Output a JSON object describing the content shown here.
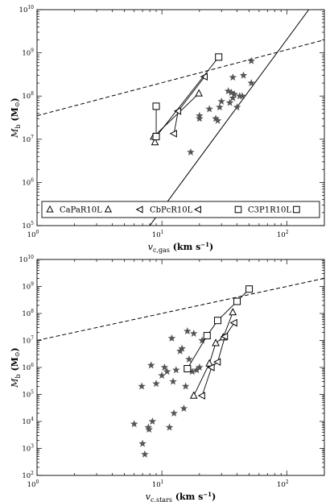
{
  "chart_data": [
    {
      "type": "scatter",
      "panel": "top",
      "x_scale": "log",
      "y_scale": "log",
      "xlim": [
        1,
        200
      ],
      "ylim": [
        100000,
        10000000000
      ],
      "xlabel_main": "v",
      "xlabel_sub": "c,gas",
      "xlabel_units": " (km s",
      "xlabel_exp": "−1",
      "xlabel_close": ")",
      "ylabel_main": "M",
      "ylabel_sub": "b",
      "ylabel_units": " (M",
      "ylabel_sym": "⊙",
      "ylabel_close": ")",
      "xticks": [
        {
          "value": 1,
          "label": "10",
          "exp": "0"
        },
        {
          "value": 10,
          "label": "10",
          "exp": "1"
        },
        {
          "value": 100,
          "label": "10",
          "exp": "2"
        }
      ],
      "yticks": [
        {
          "value": 100000,
          "label": "10",
          "exp": "5"
        },
        {
          "value": 1000000,
          "label": "10",
          "exp": "6"
        },
        {
          "value": 10000000,
          "label": "10",
          "exp": "7"
        },
        {
          "value": 100000000,
          "label": "10",
          "exp": "8"
        },
        {
          "value": 1000000000,
          "label": "10",
          "exp": "9"
        },
        {
          "value": 10000000000,
          "label": "10",
          "exp": "10"
        }
      ],
      "legend_position": "bottom",
      "legend": [
        {
          "label": "CaPaR10L",
          "marker": "triangle-up"
        },
        {
          "label": "CbPcR10L",
          "marker": "triangle-left"
        },
        {
          "label": "C3P1R10L",
          "marker": "square"
        }
      ],
      "stars": [
        {
          "x": 17,
          "y": 5000000
        },
        {
          "x": 20,
          "y": 30000000
        },
        {
          "x": 20,
          "y": 35000000
        },
        {
          "x": 24,
          "y": 50000000
        },
        {
          "x": 27,
          "y": 30000000
        },
        {
          "x": 28,
          "y": 27000000
        },
        {
          "x": 29,
          "y": 55000000
        },
        {
          "x": 30,
          "y": 75000000
        },
        {
          "x": 34,
          "y": 130000000
        },
        {
          "x": 35,
          "y": 70000000
        },
        {
          "x": 36,
          "y": 120000000
        },
        {
          "x": 37,
          "y": 90000000
        },
        {
          "x": 38,
          "y": 110000000
        },
        {
          "x": 40,
          "y": 55000000
        },
        {
          "x": 42,
          "y": 100000000
        },
        {
          "x": 37,
          "y": 270000000
        },
        {
          "x": 45,
          "y": 300000000
        },
        {
          "x": 52,
          "y": 650000000
        },
        {
          "x": 52,
          "y": 200000000
        },
        {
          "x": 44,
          "y": 100000000
        }
      ],
      "series": [
        {
          "name": "CaPaR10L",
          "marker": "triangle-up",
          "points": [
            {
              "x": 8.8,
              "y": 8500000
            },
            {
              "x": 8.6,
              "y": 11500000
            },
            {
              "x": 19.8,
              "y": 115000000
            }
          ]
        },
        {
          "name": "CbPcR10L",
          "marker": "triangle-left",
          "points": [
            {
              "x": 12.5,
              "y": 13500000
            },
            {
              "x": 13.5,
              "y": 45000000
            },
            {
              "x": 22,
              "y": 280000000
            }
          ]
        },
        {
          "name": "C3P1R10L",
          "marker": "square",
          "points": [
            {
              "x": 9,
              "y": 58000000
            },
            {
              "x": 9,
              "y": 11500000
            },
            {
              "x": 28.5,
              "y": 800000000
            }
          ]
        }
      ],
      "fit_line": {
        "style": "solid",
        "points": [
          {
            "x": 8,
            "y": 100000
          },
          {
            "x": 150,
            "y": 10000000000
          }
        ]
      },
      "reference_line": {
        "style": "dashed",
        "points": [
          {
            "x": 1,
            "y": 35000000
          },
          {
            "x": 200,
            "y": 2000000000
          }
        ]
      }
    },
    {
      "type": "scatter",
      "panel": "bottom",
      "x_scale": "log",
      "y_scale": "log",
      "xlim": [
        1,
        200
      ],
      "ylim": [
        100,
        10000000000
      ],
      "xlabel_main": "v",
      "xlabel_sub": "c,stars",
      "xlabel_units": " (km s",
      "xlabel_exp": "−1",
      "xlabel_close": ")",
      "ylabel_main": "M",
      "ylabel_sub": "b",
      "ylabel_units": " (M",
      "ylabel_sym": "⊙",
      "ylabel_close": ")",
      "xticks": [
        {
          "value": 1,
          "label": "10",
          "exp": "0"
        },
        {
          "value": 10,
          "label": "10",
          "exp": "1"
        },
        {
          "value": 100,
          "label": "10",
          "exp": "2"
        }
      ],
      "yticks": [
        {
          "value": 100,
          "label": "10",
          "exp": "2"
        },
        {
          "value": 1000,
          "label": "10",
          "exp": "3"
        },
        {
          "value": 10000,
          "label": "10",
          "exp": "4"
        },
        {
          "value": 100000,
          "label": "10",
          "exp": "5"
        },
        {
          "value": 1000000,
          "label": "10",
          "exp": "6"
        },
        {
          "value": 10000000,
          "label": "10",
          "exp": "7"
        },
        {
          "value": 100000000,
          "label": "10",
          "exp": "8"
        },
        {
          "value": 1000000000,
          "label": "10",
          "exp": "9"
        },
        {
          "value": 10000000000,
          "label": "10",
          "exp": "10"
        }
      ],
      "stars": [
        {
          "x": 6,
          "y": 8000
        },
        {
          "x": 7,
          "y": 1500
        },
        {
          "x": 7.3,
          "y": 600
        },
        {
          "x": 6.9,
          "y": 200000
        },
        {
          "x": 7.8,
          "y": 6000
        },
        {
          "x": 7.9,
          "y": 5000
        },
        {
          "x": 8.2,
          "y": 1200000
        },
        {
          "x": 8.4,
          "y": 10000
        },
        {
          "x": 9,
          "y": 250000
        },
        {
          "x": 10,
          "y": 500000
        },
        {
          "x": 10.5,
          "y": 1000000
        },
        {
          "x": 11,
          "y": 700000
        },
        {
          "x": 11.5,
          "y": 6000
        },
        {
          "x": 12,
          "y": 12000000
        },
        {
          "x": 12.3,
          "y": 300000
        },
        {
          "x": 12.5,
          "y": 20000
        },
        {
          "x": 13,
          "y": 800000
        },
        {
          "x": 14,
          "y": 4000000
        },
        {
          "x": 14.5,
          "y": 5000000
        },
        {
          "x": 15,
          "y": 30000
        },
        {
          "x": 15.5,
          "y": 200000
        },
        {
          "x": 16,
          "y": 22000000
        },
        {
          "x": 16.5,
          "y": 2000000
        },
        {
          "x": 17.5,
          "y": 700000
        },
        {
          "x": 18,
          "y": 18000000
        },
        {
          "x": 19,
          "y": 800000
        },
        {
          "x": 20,
          "y": 1000000
        },
        {
          "x": 21,
          "y": 10000000
        }
      ],
      "series": [
        {
          "name": "CaPaR10L",
          "marker": "triangle-up",
          "points": [
            {
              "x": 18,
              "y": 90000
            },
            {
              "x": 24,
              "y": 1400000
            },
            {
              "x": 27,
              "y": 8000000
            },
            {
              "x": 31,
              "y": 13000000
            },
            {
              "x": 37,
              "y": 110000000
            }
          ]
        },
        {
          "name": "CbPcR10L",
          "marker": "triangle-left",
          "points": [
            {
              "x": 21,
              "y": 90000
            },
            {
              "x": 25,
              "y": 1000000
            },
            {
              "x": 28,
              "y": 1600000
            },
            {
              "x": 32,
              "y": 14000000
            },
            {
              "x": 38,
              "y": 45000000
            }
          ]
        },
        {
          "name": "C3P1R10L",
          "marker": "square",
          "points": [
            {
              "x": 16,
              "y": 900000
            },
            {
              "x": 23,
              "y": 15000000
            },
            {
              "x": 28,
              "y": 55000000
            },
            {
              "x": 40,
              "y": 280000000
            },
            {
              "x": 50,
              "y": 800000000
            }
          ]
        }
      ],
      "reference_line": {
        "style": "dashed",
        "points": [
          {
            "x": 1,
            "y": 10000000
          },
          {
            "x": 200,
            "y": 2000000000
          }
        ]
      }
    }
  ]
}
